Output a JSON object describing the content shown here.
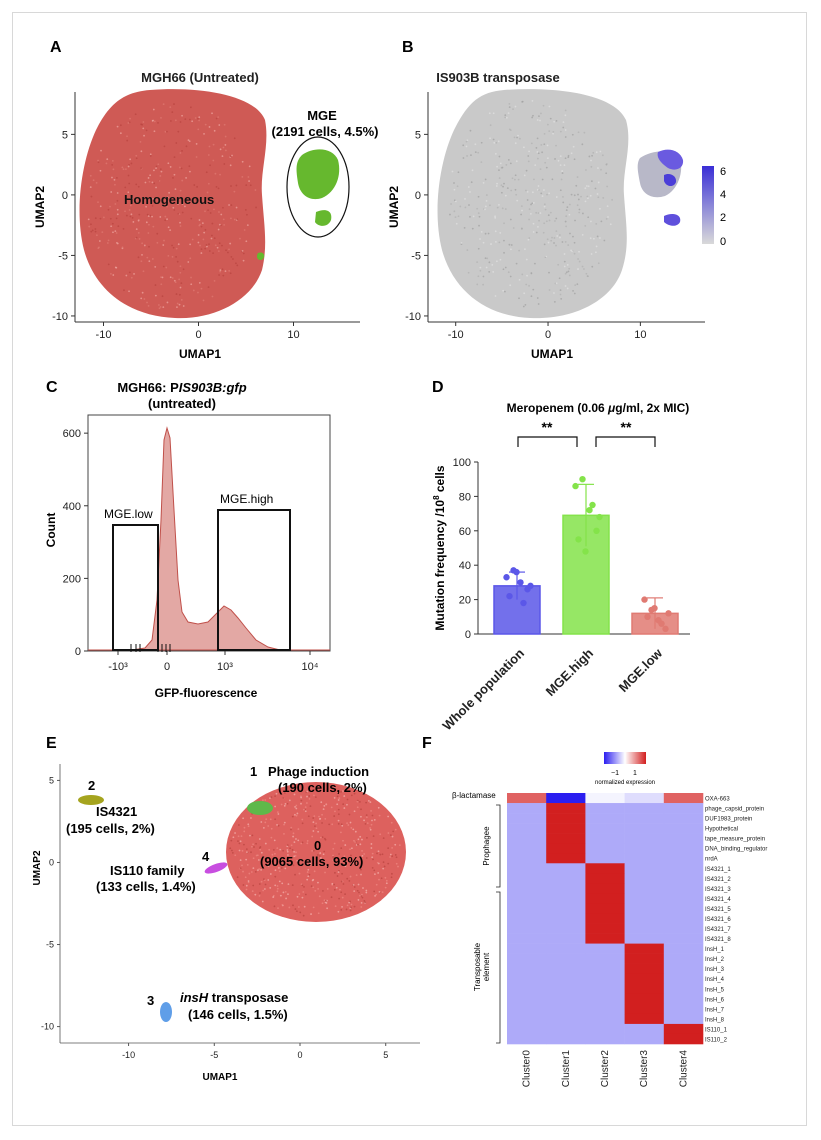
{
  "panels": {
    "A": "A",
    "B": "B",
    "C": "C",
    "D": "D",
    "E": "E",
    "F": "F"
  },
  "chart_data": [
    {
      "panel": "A",
      "type": "scatter",
      "title": "MGH66 (Untreated)",
      "xlabel": "UMAP1",
      "ylabel": "UMAP2",
      "xlim": [
        -13,
        17
      ],
      "ylim": [
        -10.5,
        8.5
      ],
      "xticks": [
        -10,
        0,
        10
      ],
      "yticks": [
        5,
        0,
        -5,
        -10
      ],
      "annotations": [
        "Homogeneous",
        "MGE",
        "(2191 cells, 4.5%)"
      ],
      "series": [
        {
          "name": "Homogeneous",
          "color": "#cf5a55"
        },
        {
          "name": "MGE",
          "color": "#66b82e",
          "count": 2191,
          "percent": 4.5
        }
      ]
    },
    {
      "panel": "B",
      "type": "scatter",
      "title": "IS903B transposase",
      "xlabel": "UMAP1",
      "ylabel": "UMAP2",
      "xlim": [
        -13,
        17
      ],
      "ylim": [
        -10.5,
        8.5
      ],
      "xticks": [
        -10,
        0,
        10
      ],
      "yticks": [
        5,
        0,
        -5,
        -10
      ],
      "colorbar": {
        "ticks": [
          "6",
          "4",
          "2",
          "0"
        ],
        "low": "#d9d9d9",
        "high": "#3a2ed6"
      }
    },
    {
      "panel": "C",
      "type": "area",
      "title_line1": "MGH66: PIS903B:gfp",
      "title_line2": "(untreated)",
      "xlabel": "GFP-fluorescence",
      "ylabel": "Count",
      "ylim": [
        0,
        650
      ],
      "yticks": [
        "600",
        "400",
        "200",
        "0"
      ],
      "xticks": [
        "-10³",
        "0",
        "10³",
        "10⁴"
      ],
      "gates": [
        "MGE.low",
        "MGE.high"
      ]
    },
    {
      "panel": "D",
      "type": "bar",
      "title": "Meropenem (0.06 μg/ml, 2x MIC)",
      "ylabel": "Mutation frequency /10⁸ cells",
      "ylim": [
        0,
        100
      ],
      "yticks": [
        "100",
        "80",
        "60",
        "40",
        "20",
        "0"
      ],
      "categories": [
        "Whole population",
        "MGE.high",
        "MGE.low"
      ],
      "values": [
        28,
        69,
        12
      ],
      "errors": [
        8,
        18,
        9
      ],
      "colors": [
        "#5b57e8",
        "#84e34a",
        "#e07a72"
      ],
      "points": [
        [
          33,
          37,
          30,
          26,
          22,
          36,
          18,
          28
        ],
        [
          86,
          90,
          72,
          60,
          55,
          48,
          75,
          68
        ],
        [
          20,
          14,
          8,
          3,
          10,
          15,
          6,
          12
        ]
      ],
      "significance": [
        "**",
        "**"
      ]
    },
    {
      "panel": "E",
      "type": "scatter",
      "xlabel": "UMAP1",
      "ylabel": "UMAP2",
      "xlim": [
        -14,
        7
      ],
      "ylim": [
        -11,
        6
      ],
      "xticks": [
        "-10",
        "-5",
        "0",
        "5"
      ],
      "yticks": [
        "5",
        "0",
        "-5",
        "-10"
      ],
      "clusters": [
        {
          "id": "0",
          "label": "(9065 cells, 93%)",
          "count": 9065,
          "percent": 93,
          "color": "#d9504c"
        },
        {
          "id": "1",
          "label": "Phage induction",
          "sub": "(190 cells, 2%)",
          "count": 190,
          "percent": 2,
          "color": "#5fb84a"
        },
        {
          "id": "2",
          "label": "IS4321",
          "sub": "(195 cells, 2%)",
          "count": 195,
          "percent": 2,
          "color": "#a5a41e"
        },
        {
          "id": "3",
          "label": "insH",
          "label2": " transposase",
          "sub": "(146 cells, 1.5%)",
          "count": 146,
          "percent": 1.5,
          "color": "#5f9ee8"
        },
        {
          "id": "4",
          "label": "IS110 family",
          "sub": "(133 cells, 1.4%)",
          "count": 133,
          "percent": 1.4,
          "color": "#c84ee0"
        }
      ]
    },
    {
      "panel": "F",
      "type": "heatmap",
      "legend": {
        "label": "normalized expression",
        "ticks": [
          "−1",
          "1"
        ]
      },
      "columns": [
        "Cluster0",
        "Cluster1",
        "Cluster2",
        "Cluster3",
        "Cluster4"
      ],
      "row_groups": [
        "β-lactamase",
        "Prophagee",
        "Transposable",
        "element"
      ],
      "rows": [
        "OXA-663",
        "phage_capsid_protein",
        "DUF1983_protein",
        "Hypothetical",
        "tape_measure_protein",
        "DNA_binding_regulator",
        "nrdA",
        "IS4321_1",
        "IS4321_2",
        "IS4321_3",
        "IS4321_4",
        "IS4321_5",
        "IS4321_6",
        "IS4321_7",
        "IS4321_8",
        "InsH_1",
        "InsH_2",
        "InsH_3",
        "InsH_4",
        "InsH_5",
        "InsH_6",
        "InsH_7",
        "InsH_8",
        "IS110_1",
        "IS110_2"
      ],
      "values": [
        [
          0.7,
          -1.2,
          -0.05,
          -0.15,
          0.7
        ],
        [
          -0.7,
          1,
          -0.7,
          -0.7,
          -0.7
        ],
        [
          -0.7,
          1,
          -0.7,
          -0.7,
          -0.7
        ],
        [
          -0.7,
          1,
          -0.7,
          -0.7,
          -0.7
        ],
        [
          -0.7,
          1,
          -0.7,
          -0.7,
          -0.7
        ],
        [
          -0.7,
          1,
          -0.7,
          -0.7,
          -0.7
        ],
        [
          -0.7,
          1,
          -0.7,
          -0.7,
          -0.7
        ],
        [
          -0.7,
          -0.7,
          1,
          -0.7,
          -0.7
        ],
        [
          -0.7,
          -0.7,
          1,
          -0.7,
          -0.7
        ],
        [
          -0.7,
          -0.7,
          1,
          -0.7,
          -0.7
        ],
        [
          -0.7,
          -0.7,
          1,
          -0.7,
          -0.7
        ],
        [
          -0.7,
          -0.7,
          1,
          -0.7,
          -0.7
        ],
        [
          -0.7,
          -0.7,
          1,
          -0.7,
          -0.7
        ],
        [
          -0.7,
          -0.7,
          1,
          -0.7,
          -0.7
        ],
        [
          -0.7,
          -0.7,
          1,
          -0.7,
          -0.7
        ],
        [
          -0.7,
          -0.7,
          -0.7,
          1,
          -0.7
        ],
        [
          -0.7,
          -0.7,
          -0.7,
          1,
          -0.7
        ],
        [
          -0.7,
          -0.7,
          -0.7,
          1,
          -0.7
        ],
        [
          -0.7,
          -0.7,
          -0.7,
          1,
          -0.7
        ],
        [
          -0.7,
          -0.7,
          -0.7,
          1,
          -0.7
        ],
        [
          -0.7,
          -0.7,
          -0.7,
          1,
          -0.7
        ],
        [
          -0.7,
          -0.7,
          -0.7,
          1,
          -0.7
        ],
        [
          -0.7,
          -0.7,
          -0.7,
          1,
          -0.7
        ],
        [
          -0.7,
          -0.7,
          -0.7,
          -0.7,
          1
        ],
        [
          -0.7,
          -0.7,
          -0.7,
          -0.7,
          1
        ]
      ]
    }
  ]
}
